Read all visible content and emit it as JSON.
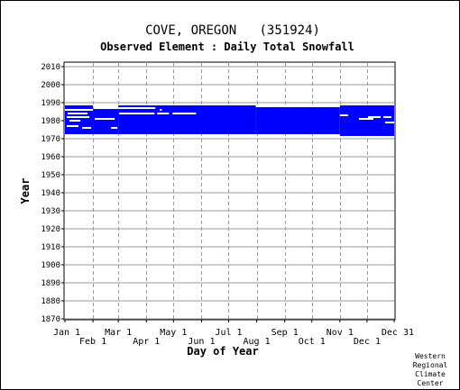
{
  "chart_data": {
    "type": "heatmap",
    "title": "COVE, OREGON   (351924)",
    "subtitle": "Observed Element : Daily Total Snowfall",
    "xlabel": "Day of Year",
    "ylabel": "Year",
    "x_unit": "day of year",
    "xlim": [
      1,
      365
    ],
    "ylim": [
      1870,
      2012
    ],
    "grid": true,
    "x_ticks_upper": [
      {
        "label": "Jan 1",
        "day": 1
      },
      {
        "label": "Mar 1",
        "day": 60
      },
      {
        "label": "May 1",
        "day": 121
      },
      {
        "label": "Jul 1",
        "day": 182
      },
      {
        "label": "Sep 1",
        "day": 244
      },
      {
        "label": "Nov 1",
        "day": 305
      },
      {
        "label": "Dec 31",
        "day": 365
      }
    ],
    "x_ticks_lower": [
      {
        "label": "Feb 1",
        "day": 32
      },
      {
        "label": "Apr 1",
        "day": 91
      },
      {
        "label": "Jun 1",
        "day": 152
      },
      {
        "label": "Aug 1",
        "day": 213
      },
      {
        "label": "Oct 1",
        "day": 274
      },
      {
        "label": "Dec 1",
        "day": 335
      }
    ],
    "y_ticks": [
      "2010",
      "2000",
      "1990",
      "1980",
      "1970",
      "1960",
      "1950",
      "1940",
      "1930",
      "1920",
      "1910",
      "1900",
      "1890",
      "1880",
      "1870"
    ],
    "coverage_color": "#0000ff",
    "coverage_blocks": [
      {
        "day_start": 1,
        "day_end": 32,
        "year_start": 1973,
        "year_end": 1988
      },
      {
        "day_start": 32,
        "day_end": 60,
        "year_start": 1973,
        "year_end": 1986
      },
      {
        "day_start": 60,
        "day_end": 212,
        "year_start": 1973,
        "year_end": 1988
      },
      {
        "day_start": 212,
        "day_end": 305,
        "year_start": 1973,
        "year_end": 1987
      },
      {
        "day_start": 305,
        "day_end": 365,
        "year_start": 1972,
        "year_end": 1988
      }
    ],
    "missing_segments": [
      {
        "day_start": 1,
        "day_end": 32,
        "year": 1986
      },
      {
        "day_start": 4,
        "day_end": 26,
        "year": 1984
      },
      {
        "day_start": 3,
        "day_end": 28,
        "year": 1982
      },
      {
        "day_start": 6,
        "day_end": 18,
        "year": 1980
      },
      {
        "day_start": 3,
        "day_end": 16,
        "year": 1977
      },
      {
        "day_start": 20,
        "day_end": 30,
        "year": 1976
      },
      {
        "day_start": 34,
        "day_end": 56,
        "year": 1981
      },
      {
        "day_start": 52,
        "day_end": 59,
        "year": 1976
      },
      {
        "day_start": 60,
        "day_end": 101,
        "year": 1987
      },
      {
        "day_start": 61,
        "day_end": 100,
        "year": 1984
      },
      {
        "day_start": 103,
        "day_end": 116,
        "year": 1984
      },
      {
        "day_start": 120,
        "day_end": 146,
        "year": 1984
      },
      {
        "day_start": 106,
        "day_end": 108,
        "year": 1986
      },
      {
        "day_start": 305,
        "day_end": 314,
        "year": 1983
      },
      {
        "day_start": 336,
        "day_end": 350,
        "year": 1982
      },
      {
        "day_start": 326,
        "day_end": 342,
        "year": 1981
      },
      {
        "day_start": 353,
        "day_end": 362,
        "year": 1982
      },
      {
        "day_start": 355,
        "day_end": 365,
        "year": 1979
      }
    ],
    "credit": [
      "Western",
      "Regional",
      "Climate",
      "Center"
    ]
  }
}
